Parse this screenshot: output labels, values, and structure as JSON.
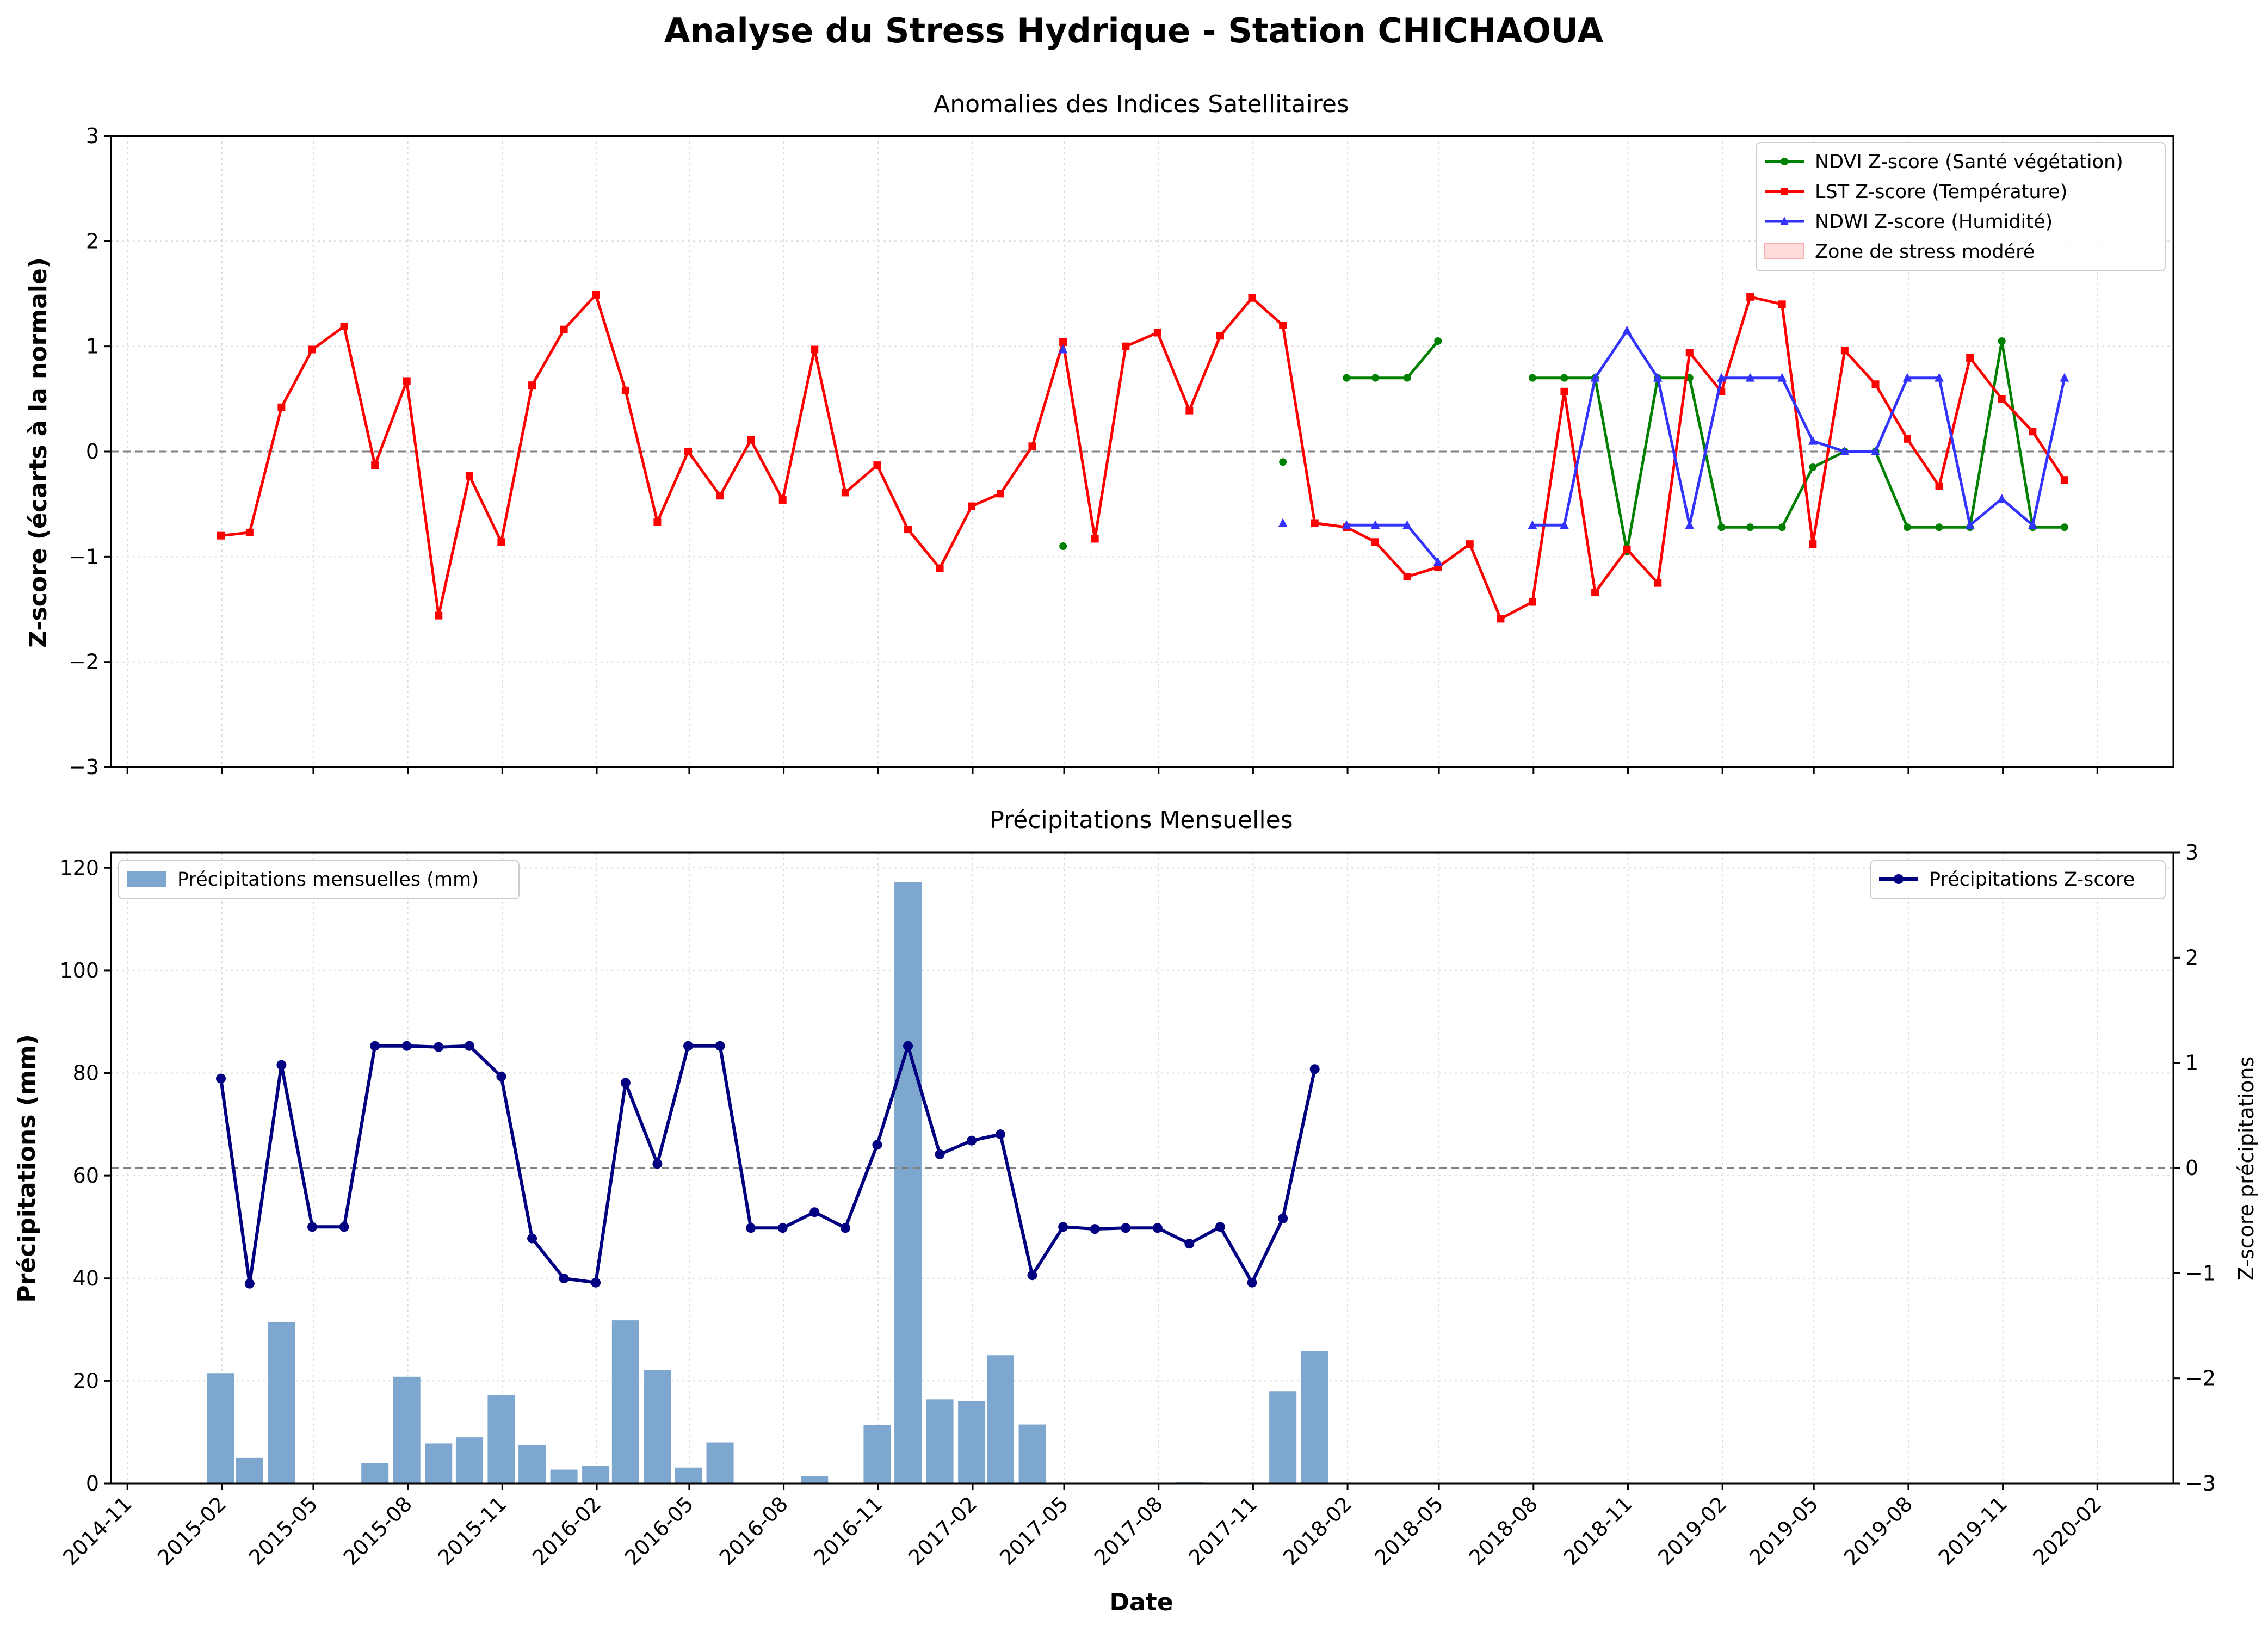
{
  "figure_title": "Analyse du Stress Hydrique - Station CHICHAOUA",
  "x_axis_label": "Date",
  "colors": {
    "ndvi": "#008000",
    "lst": "#ff0000",
    "ndwi": "#3333ff",
    "stress_zone": "#ffb3b3",
    "bars": "#7ea7cf",
    "precip_z": "#000080",
    "zero_line": "#808080"
  },
  "chart_data": [
    {
      "type": "line",
      "title": "Anomalies des Indices Satellitaires",
      "ylabel": "Z-score (écarts à la normale)",
      "xlabel": "",
      "xlim": [
        "2014-10-16",
        "2020-04-15"
      ],
      "ylim": [
        -3,
        3
      ],
      "yticks": [
        -3,
        -2,
        -1,
        0,
        1,
        2,
        3
      ],
      "grid": true,
      "legend_position": "upper right",
      "reference_line": 0,
      "shaded_zone": {
        "name": "Zone de stress modéré",
        "from": -3,
        "to": -1.5
      },
      "series": [
        {
          "name": "NDVI Z-score (Santé végétation)",
          "marker": "circle",
          "color": "#008000",
          "points": [
            [
              "2017-04-30",
              -0.9
            ],
            [
              "2017-10-31",
              null
            ],
            [
              "2017-11-30",
              -0.1
            ],
            [
              "2017-12-31",
              null
            ],
            [
              "2018-01-31",
              0.7
            ],
            [
              "2018-02-28",
              0.7
            ],
            [
              "2018-03-31",
              0.7
            ],
            [
              "2018-04-30",
              1.05
            ],
            [
              "2018-05-31",
              null
            ],
            [
              "2018-07-31",
              0.7
            ],
            [
              "2018-08-31",
              0.7
            ],
            [
              "2018-09-30",
              0.7
            ],
            [
              "2018-10-31",
              -0.95
            ],
            [
              "2018-11-30",
              0.7
            ],
            [
              "2018-12-31",
              0.7
            ],
            [
              "2019-01-31",
              -0.72
            ],
            [
              "2019-02-28",
              -0.72
            ],
            [
              "2019-03-31",
              -0.72
            ],
            [
              "2019-04-30",
              -0.15
            ],
            [
              "2019-05-31",
              0.0
            ],
            [
              "2019-06-30",
              0.0
            ],
            [
              "2019-07-31",
              -0.72
            ],
            [
              "2019-08-31",
              -0.72
            ],
            [
              "2019-09-30",
              -0.72
            ],
            [
              "2019-10-31",
              1.05
            ],
            [
              "2019-11-30",
              -0.72
            ],
            [
              "2019-12-31",
              -0.72
            ]
          ]
        },
        {
          "name": "LST Z-score (Température)",
          "marker": "square",
          "color": "#ff0000",
          "points": [
            [
              "2015-01-31",
              -0.8
            ],
            [
              "2015-02-28",
              -0.77
            ],
            [
              "2015-03-31",
              0.42
            ],
            [
              "2015-04-30",
              0.97
            ],
            [
              "2015-05-31",
              1.19
            ],
            [
              "2015-06-30",
              -0.13
            ],
            [
              "2015-07-31",
              0.67
            ],
            [
              "2015-08-31",
              -1.56
            ],
            [
              "2015-09-30",
              -0.23
            ],
            [
              "2015-10-31",
              -0.86
            ],
            [
              "2015-11-30",
              0.63
            ],
            [
              "2015-12-31",
              1.16
            ],
            [
              "2016-01-31",
              1.49
            ],
            [
              "2016-02-29",
              0.58
            ],
            [
              "2016-03-31",
              -0.67
            ],
            [
              "2016-04-30",
              0.0
            ],
            [
              "2016-05-31",
              -0.42
            ],
            [
              "2016-06-30",
              0.11
            ],
            [
              "2016-07-31",
              -0.46
            ],
            [
              "2016-08-31",
              0.97
            ],
            [
              "2016-09-30",
              -0.39
            ],
            [
              "2016-10-31",
              -0.13
            ],
            [
              "2016-11-30",
              -0.74
            ],
            [
              "2016-12-31",
              -1.11
            ],
            [
              "2017-01-31",
              -0.52
            ],
            [
              "2017-02-28",
              -0.4
            ],
            [
              "2017-03-31",
              0.05
            ],
            [
              "2017-04-30",
              1.04
            ],
            [
              "2017-05-31",
              -0.83
            ],
            [
              "2017-06-30",
              1.0
            ],
            [
              "2017-07-31",
              1.13
            ],
            [
              "2017-08-31",
              0.39
            ],
            [
              "2017-09-30",
              1.1
            ],
            [
              "2017-10-31",
              1.46
            ],
            [
              "2017-11-30",
              1.2
            ],
            [
              "2017-12-31",
              -0.68
            ],
            [
              "2018-01-31",
              -0.72
            ],
            [
              "2018-02-28",
              -0.86
            ],
            [
              "2018-03-31",
              -1.19
            ],
            [
              "2018-04-30",
              -1.1
            ],
            [
              "2018-05-31",
              -0.88
            ],
            [
              "2018-06-30",
              -1.59
            ],
            [
              "2018-07-31",
              -1.43
            ],
            [
              "2018-08-31",
              0.57
            ],
            [
              "2018-09-30",
              -1.34
            ],
            [
              "2018-10-31",
              -0.93
            ],
            [
              "2018-11-30",
              -1.25
            ],
            [
              "2018-12-31",
              0.94
            ],
            [
              "2019-01-31",
              0.57
            ],
            [
              "2019-02-28",
              1.47
            ],
            [
              "2019-03-31",
              1.4
            ],
            [
              "2019-04-30",
              -0.88
            ],
            [
              "2019-05-31",
              0.96
            ],
            [
              "2019-06-30",
              0.64
            ],
            [
              "2019-07-31",
              0.12
            ],
            [
              "2019-08-31",
              -0.33
            ],
            [
              "2019-09-30",
              0.89
            ],
            [
              "2019-10-31",
              0.5
            ],
            [
              "2019-11-30",
              0.19
            ],
            [
              "2019-12-31",
              -0.27
            ]
          ]
        },
        {
          "name": "NDWI Z-score (Humidité)",
          "marker": "triangle",
          "color": "#3333ff",
          "points": [
            [
              "2017-04-30",
              0.97
            ],
            [
              "2017-10-31",
              null
            ],
            [
              "2017-11-30",
              -0.68
            ],
            [
              "2017-12-31",
              null
            ],
            [
              "2018-01-31",
              -0.7
            ],
            [
              "2018-02-28",
              -0.7
            ],
            [
              "2018-03-31",
              -0.7
            ],
            [
              "2018-04-30",
              -1.05
            ],
            [
              "2018-05-31",
              null
            ],
            [
              "2018-07-31",
              -0.7
            ],
            [
              "2018-08-31",
              -0.7
            ],
            [
              "2018-09-30",
              0.7
            ],
            [
              "2018-10-31",
              1.15
            ],
            [
              "2018-11-30",
              0.7
            ],
            [
              "2018-12-31",
              -0.7
            ],
            [
              "2019-01-31",
              0.7
            ],
            [
              "2019-02-28",
              0.7
            ],
            [
              "2019-03-31",
              0.7
            ],
            [
              "2019-04-30",
              0.1
            ],
            [
              "2019-05-31",
              0.0
            ],
            [
              "2019-06-30",
              0.0
            ],
            [
              "2019-07-31",
              0.7
            ],
            [
              "2019-08-31",
              0.7
            ],
            [
              "2019-09-30",
              -0.7
            ],
            [
              "2019-10-31",
              -0.45
            ],
            [
              "2019-11-30",
              -0.7
            ],
            [
              "2019-12-31",
              0.7
            ]
          ]
        }
      ]
    },
    {
      "type": "bar",
      "title": "Précipitations Mensuelles",
      "ylabel": "Précipitations (mm)",
      "y2label": "Z-score précipitations",
      "xlabel": "Date",
      "xlim": [
        "2014-10-16",
        "2020-04-15"
      ],
      "ylim": [
        0,
        123
      ],
      "yticks": [
        0,
        20,
        40,
        60,
        80,
        100,
        120
      ],
      "y2lim": [
        -3,
        3
      ],
      "y2ticks": [
        -3,
        -2,
        -1,
        0,
        1,
        2,
        3
      ],
      "xticks": [
        "2014-11",
        "2015-02",
        "2015-05",
        "2015-08",
        "2015-11",
        "2016-02",
        "2016-05",
        "2016-08",
        "2016-11",
        "2017-02",
        "2017-05",
        "2017-08",
        "2017-11",
        "2018-02",
        "2018-05",
        "2018-08",
        "2018-11",
        "2019-02",
        "2019-05",
        "2019-08",
        "2019-11",
        "2020-02"
      ],
      "grid": true,
      "reference_line_y2": 0,
      "series": [
        {
          "name": "Précipitations mensuelles (mm)",
          "kind": "bar",
          "color": "#7ea7cf",
          "points": [
            [
              "2015-01-31",
              21.5
            ],
            [
              "2015-02-28",
              5.0
            ],
            [
              "2015-03-31",
              31.5
            ],
            [
              "2015-04-30",
              0
            ],
            [
              "2015-05-31",
              0
            ],
            [
              "2015-06-30",
              4.0
            ],
            [
              "2015-07-31",
              20.8
            ],
            [
              "2015-08-31",
              7.8
            ],
            [
              "2015-09-30",
              9.0
            ],
            [
              "2015-10-31",
              17.2
            ],
            [
              "2015-11-30",
              7.5
            ],
            [
              "2015-12-31",
              2.7
            ],
            [
              "2016-01-31",
              3.4
            ],
            [
              "2016-02-29",
              31.8
            ],
            [
              "2016-03-31",
              22.1
            ],
            [
              "2016-04-30",
              3.1
            ],
            [
              "2016-05-31",
              8.0
            ],
            [
              "2016-06-30",
              0
            ],
            [
              "2016-07-31",
              0
            ],
            [
              "2016-08-31",
              1.4
            ],
            [
              "2016-09-30",
              0
            ],
            [
              "2016-10-31",
              11.4
            ],
            [
              "2016-11-30",
              117.2
            ],
            [
              "2016-12-31",
              16.4
            ],
            [
              "2017-01-31",
              16.1
            ],
            [
              "2017-02-28",
              25.0
            ],
            [
              "2017-03-31",
              11.5
            ],
            [
              "2017-04-30",
              0
            ],
            [
              "2017-05-31",
              0
            ],
            [
              "2017-06-30",
              0
            ],
            [
              "2017-07-31",
              0
            ],
            [
              "2017-08-31",
              0.2
            ],
            [
              "2017-09-30",
              0
            ],
            [
              "2017-10-31",
              0
            ],
            [
              "2017-11-30",
              18.0
            ],
            [
              "2017-12-31",
              25.8
            ]
          ]
        },
        {
          "name": "Précipitations Z-score",
          "kind": "line",
          "axis": "y2",
          "color": "#000080",
          "points": [
            [
              "2015-01-31",
              0.85
            ],
            [
              "2015-02-28",
              -1.1
            ],
            [
              "2015-03-31",
              0.98
            ],
            [
              "2015-04-30",
              -0.56
            ],
            [
              "2015-05-31",
              -0.56
            ],
            [
              "2015-06-30",
              1.16
            ],
            [
              "2015-07-31",
              1.16
            ],
            [
              "2015-08-31",
              1.15
            ],
            [
              "2015-09-30",
              1.16
            ],
            [
              "2015-10-31",
              0.87
            ],
            [
              "2015-11-30",
              -0.67
            ],
            [
              "2015-12-31",
              -1.05
            ],
            [
              "2016-01-31",
              -1.09
            ],
            [
              "2016-02-29",
              0.81
            ],
            [
              "2016-03-31",
              0.04
            ],
            [
              "2016-04-30",
              1.16
            ],
            [
              "2016-05-31",
              1.16
            ],
            [
              "2016-06-30",
              -0.57
            ],
            [
              "2016-07-31",
              -0.57
            ],
            [
              "2016-08-31",
              -0.42
            ],
            [
              "2016-09-30",
              -0.57
            ],
            [
              "2016-10-31",
              0.22
            ],
            [
              "2016-11-30",
              1.16
            ],
            [
              "2016-12-31",
              0.13
            ],
            [
              "2017-01-31",
              0.26
            ],
            [
              "2017-02-28",
              0.32
            ],
            [
              "2017-03-31",
              -1.02
            ],
            [
              "2017-04-30",
              -0.56
            ],
            [
              "2017-05-31",
              -0.58
            ],
            [
              "2017-06-30",
              -0.57
            ],
            [
              "2017-07-31",
              -0.57
            ],
            [
              "2017-08-31",
              -0.72
            ],
            [
              "2017-09-30",
              -0.56
            ],
            [
              "2017-10-31",
              -1.09
            ],
            [
              "2017-11-30",
              -0.48
            ],
            [
              "2017-12-31",
              0.94
            ]
          ]
        }
      ]
    }
  ]
}
